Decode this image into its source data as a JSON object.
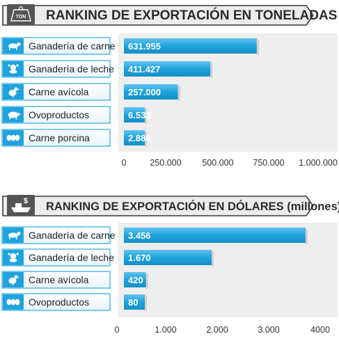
{
  "charts": [
    {
      "header": {
        "title": "RANKING DE EXPORTACIÓN EN TONELADAS",
        "icon": "weight-ton-icon",
        "icon_text": "TON"
      },
      "chart_data": {
        "type": "bar",
        "orientation": "horizontal",
        "categories": [
          "Ganadería de carne",
          "Ganadería de leche",
          "Carne avícola",
          "Ovoproductos",
          "Carne porcina"
        ],
        "category_icons": [
          "cow-icon",
          "milk-cow-icon",
          "chicken-icon",
          "pig-icon",
          "eggs-icon"
        ],
        "values": [
          631955,
          411427,
          257000,
          6538,
          2886
        ],
        "value_labels": [
          "631.955",
          "411.427",
          "257.000",
          "6.538",
          "2.886"
        ],
        "xlim": [
          0,
          1000000
        ],
        "xticks": [
          0,
          250000,
          500000,
          750000,
          1000000
        ],
        "xtick_labels": [
          "0",
          "250.000",
          "500.000",
          "750.000",
          "1.000.000"
        ],
        "grid": false
      }
    },
    {
      "header": {
        "title": "RANKING DE EXPORTACIÓN EN DÓLARES (millones)",
        "icon": "money-ship-icon",
        "icon_text": "$"
      },
      "chart_data": {
        "type": "bar",
        "orientation": "horizontal",
        "categories": [
          "Ganadería de carne",
          "Ganadería de leche",
          "Carne avícola",
          "Ovoproductos"
        ],
        "category_icons": [
          "cow-icon",
          "milk-cow-icon",
          "chicken-icon",
          "eggs-icon"
        ],
        "values": [
          3456,
          1670,
          420,
          80
        ],
        "value_labels": [
          "3.456",
          "1.670",
          "420",
          "80"
        ],
        "xlim": [
          0,
          4000
        ],
        "xticks": [
          0,
          1000,
          2000,
          3000,
          4000
        ],
        "xtick_labels": [
          "0",
          "1.000",
          "2.000",
          "3.000",
          "4000"
        ],
        "grid": false
      }
    }
  ],
  "colors": {
    "bar": "#1fa3dd",
    "bar_light": "#6cc8f0",
    "plot_bg": "#eeeeee",
    "header_bg": "#ececec",
    "header_dark": "#555555",
    "label_border": "#2aa7de"
  }
}
